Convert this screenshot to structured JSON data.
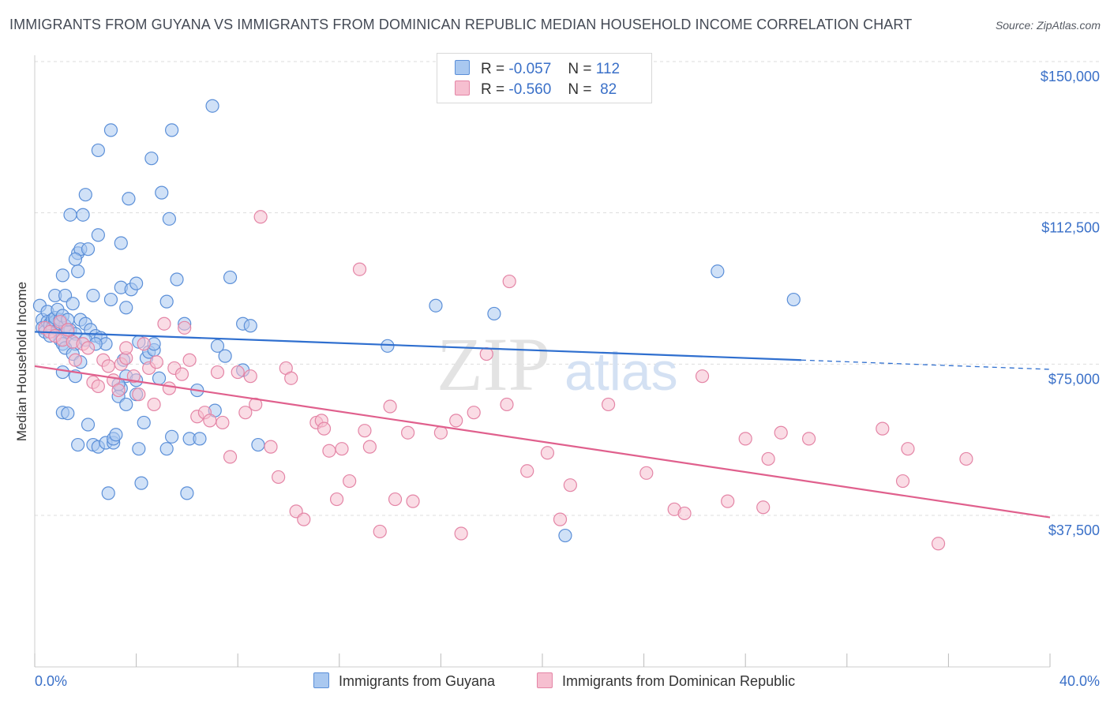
{
  "header": {
    "title": "IMMIGRANTS FROM GUYANA VS IMMIGRANTS FROM DOMINICAN REPUBLIC MEDIAN HOUSEHOLD INCOME CORRELATION CHART",
    "source": "Source: ZipAtlas.com"
  },
  "legend": {
    "rows": [
      {
        "r_label": "R =",
        "r_value": "-0.057",
        "n_label": "N =",
        "n_value": "112"
      },
      {
        "r_label": "R =",
        "r_value": "-0.560",
        "n_label": "N =",
        "n_value": "82"
      }
    ]
  },
  "watermark": {
    "zip": "ZIP",
    "atlas": "atlas"
  },
  "colors": {
    "blue_fill": "#a9c8f0",
    "blue_stroke": "#5b8fd8",
    "blue_line": "#2f6fcf",
    "pink_fill": "#f6bfd0",
    "pink_stroke": "#e485a6",
    "pink_line": "#e0608d",
    "grid": "#dddddd",
    "tick_text": "#3a70c8"
  },
  "chart_data": {
    "type": "scatter",
    "title": "IMMIGRANTS FROM GUYANA VS IMMIGRANTS FROM DOMINICAN REPUBLIC MEDIAN HOUSEHOLD INCOME CORRELATION CHART",
    "xlabel": "",
    "ylabel": "Median Household Income",
    "xlim": [
      0,
      40
    ],
    "ylim": [
      0,
      155000
    ],
    "x_edge_labels": [
      "0.0%",
      "40.0%"
    ],
    "y_ticks": [
      37500,
      75000,
      112500,
      150000
    ],
    "y_tick_labels": [
      "$37,500",
      "$75,000",
      "$112,500",
      "$150,000"
    ],
    "grid": true,
    "legend_position": "top-center",
    "series": [
      {
        "name": "Immigrants from Guyana",
        "color": "blue",
        "R": -0.057,
        "N": 112,
        "trend": {
          "x0": 0,
          "y0": 83000,
          "x1": 30.2,
          "y1": 76000,
          "dashed_to_x": 40,
          "dashed_to_y": 73700
        },
        "points": [
          [
            0.2,
            89500
          ],
          [
            0.3,
            86000
          ],
          [
            0.3,
            84000
          ],
          [
            0.4,
            83000
          ],
          [
            0.5,
            88000
          ],
          [
            0.5,
            85500
          ],
          [
            0.6,
            85000
          ],
          [
            0.6,
            84500
          ],
          [
            0.7,
            86000
          ],
          [
            0.7,
            84000
          ],
          [
            0.8,
            85500
          ],
          [
            0.9,
            83500
          ],
          [
            1.0,
            81000
          ],
          [
            1.1,
            80000
          ],
          [
            0.6,
            82000
          ],
          [
            0.8,
            86500
          ],
          [
            1.0,
            85000
          ],
          [
            1.2,
            84500
          ],
          [
            1.4,
            83500
          ],
          [
            1.6,
            82500
          ],
          [
            0.8,
            92000
          ],
          [
            1.0,
            86000
          ],
          [
            1.3,
            83000
          ],
          [
            1.6,
            80000
          ],
          [
            0.9,
            88500
          ],
          [
            1.1,
            87000
          ],
          [
            1.3,
            86000
          ],
          [
            1.2,
            92000
          ],
          [
            1.5,
            90000
          ],
          [
            1.7,
            98000
          ],
          [
            1.8,
            86000
          ],
          [
            2.0,
            85000
          ],
          [
            2.2,
            83500
          ],
          [
            2.4,
            82000
          ],
          [
            2.6,
            81500
          ],
          [
            2.8,
            80000
          ],
          [
            1.2,
            79000
          ],
          [
            1.5,
            77500
          ],
          [
            1.8,
            75500
          ],
          [
            1.1,
            73000
          ],
          [
            2.0,
            81000
          ],
          [
            2.4,
            80000
          ],
          [
            1.6,
            72000
          ],
          [
            1.1,
            63000
          ],
          [
            1.3,
            62800
          ],
          [
            1.7,
            55000
          ],
          [
            2.1,
            60000
          ],
          [
            2.3,
            55000
          ],
          [
            2.5,
            54500
          ],
          [
            2.8,
            55500
          ],
          [
            2.9,
            43000
          ],
          [
            3.1,
            55500
          ],
          [
            3.1,
            56500
          ],
          [
            3.2,
            57500
          ],
          [
            3.4,
            69000
          ],
          [
            3.3,
            67000
          ],
          [
            3.6,
            65000
          ],
          [
            3.6,
            72000
          ],
          [
            3.5,
            76000
          ],
          [
            3.3,
            70000
          ],
          [
            4.0,
            71000
          ],
          [
            4.0,
            67500
          ],
          [
            4.1,
            54000
          ],
          [
            4.2,
            45500
          ],
          [
            4.3,
            60500
          ],
          [
            4.4,
            76500
          ],
          [
            4.5,
            78000
          ],
          [
            4.7,
            78500
          ],
          [
            4.7,
            80000
          ],
          [
            4.9,
            71500
          ],
          [
            5.2,
            54000
          ],
          [
            5.2,
            90500
          ],
          [
            5.4,
            57000
          ],
          [
            5.6,
            96000
          ],
          [
            5.9,
            85000
          ],
          [
            6.0,
            43000
          ],
          [
            6.1,
            56500
          ],
          [
            6.5,
            56500
          ],
          [
            6.4,
            68500
          ],
          [
            7.1,
            63500
          ],
          [
            7.2,
            79500
          ],
          [
            7.5,
            77000
          ],
          [
            7.7,
            96500
          ],
          [
            8.2,
            73500
          ],
          [
            8.2,
            85000
          ],
          [
            8.5,
            84500
          ],
          [
            8.8,
            55000
          ],
          [
            3.0,
            133000
          ],
          [
            5.4,
            133000
          ],
          [
            2.5,
            128000
          ],
          [
            4.6,
            126000
          ],
          [
            7.0,
            139000
          ],
          [
            1.4,
            112000
          ],
          [
            1.9,
            112000
          ],
          [
            2.0,
            117000
          ],
          [
            3.7,
            116000
          ],
          [
            5.0,
            117500
          ],
          [
            5.3,
            111000
          ],
          [
            1.7,
            102500
          ],
          [
            1.8,
            103500
          ],
          [
            2.1,
            103500
          ],
          [
            2.5,
            107000
          ],
          [
            3.4,
            105000
          ],
          [
            1.1,
            97000
          ],
          [
            1.6,
            101000
          ],
          [
            2.3,
            92000
          ],
          [
            3.0,
            91000
          ],
          [
            3.4,
            94000
          ],
          [
            3.6,
            89000
          ],
          [
            3.8,
            93500
          ],
          [
            4.0,
            95000
          ],
          [
            4.1,
            80500
          ],
          [
            13.9,
            79500
          ],
          [
            15.8,
            89500
          ],
          [
            18.1,
            87500
          ],
          [
            26.9,
            98000
          ],
          [
            29.9,
            91000
          ],
          [
            20.9,
            32500
          ]
        ]
      },
      {
        "name": "Immigrants from Dominican Republic",
        "color": "pink",
        "R": -0.56,
        "N": 82,
        "trend": {
          "x0": 0,
          "y0": 74500,
          "x1": 40,
          "y1": 37000
        },
        "points": [
          [
            0.4,
            84000
          ],
          [
            0.6,
            83000
          ],
          [
            0.8,
            82000
          ],
          [
            1.0,
            85500
          ],
          [
            1.1,
            81000
          ],
          [
            1.3,
            83500
          ],
          [
            1.5,
            80500
          ],
          [
            1.6,
            76000
          ],
          [
            1.9,
            80000
          ],
          [
            2.1,
            79000
          ],
          [
            2.3,
            70500
          ],
          [
            2.5,
            69500
          ],
          [
            2.7,
            76000
          ],
          [
            2.9,
            74500
          ],
          [
            3.1,
            71000
          ],
          [
            3.3,
            68500
          ],
          [
            3.4,
            75000
          ],
          [
            3.6,
            76500
          ],
          [
            3.6,
            79000
          ],
          [
            3.9,
            72000
          ],
          [
            4.1,
            67500
          ],
          [
            4.3,
            80000
          ],
          [
            4.5,
            74000
          ],
          [
            4.7,
            65000
          ],
          [
            4.8,
            75500
          ],
          [
            5.1,
            85000
          ],
          [
            5.3,
            69000
          ],
          [
            5.5,
            74000
          ],
          [
            5.8,
            72500
          ],
          [
            5.9,
            84000
          ],
          [
            6.1,
            76000
          ],
          [
            6.4,
            62000
          ],
          [
            6.7,
            63000
          ],
          [
            6.9,
            61000
          ],
          [
            7.2,
            73000
          ],
          [
            7.4,
            60500
          ],
          [
            7.7,
            52000
          ],
          [
            8.0,
            73000
          ],
          [
            8.3,
            63000
          ],
          [
            8.5,
            72000
          ],
          [
            8.7,
            65000
          ],
          [
            8.9,
            111500
          ],
          [
            9.3,
            54500
          ],
          [
            9.6,
            47000
          ],
          [
            9.9,
            74000
          ],
          [
            10.1,
            71500
          ],
          [
            10.3,
            38500
          ],
          [
            10.6,
            36500
          ],
          [
            11.1,
            60500
          ],
          [
            11.3,
            61000
          ],
          [
            11.4,
            59000
          ],
          [
            11.6,
            53500
          ],
          [
            11.9,
            41500
          ],
          [
            12.1,
            54000
          ],
          [
            12.4,
            46000
          ],
          [
            12.8,
            98500
          ],
          [
            13.0,
            58500
          ],
          [
            13.2,
            54500
          ],
          [
            13.6,
            33500
          ],
          [
            14.0,
            64500
          ],
          [
            14.2,
            41500
          ],
          [
            14.7,
            58000
          ],
          [
            14.9,
            41000
          ],
          [
            16.0,
            58000
          ],
          [
            16.6,
            61000
          ],
          [
            16.8,
            33000
          ],
          [
            17.3,
            63000
          ],
          [
            17.8,
            77500
          ],
          [
            18.6,
            65000
          ],
          [
            18.7,
            95500
          ],
          [
            19.4,
            48500
          ],
          [
            20.2,
            53000
          ],
          [
            20.7,
            36500
          ],
          [
            21.1,
            45000
          ],
          [
            22.6,
            65000
          ],
          [
            24.1,
            48000
          ],
          [
            25.2,
            39000
          ],
          [
            25.6,
            38000
          ],
          [
            26.3,
            72000
          ],
          [
            27.3,
            41000
          ],
          [
            28.0,
            56500
          ],
          [
            28.7,
            39500
          ],
          [
            28.9,
            51500
          ],
          [
            29.4,
            58000
          ],
          [
            30.5,
            56500
          ],
          [
            33.4,
            59000
          ],
          [
            34.2,
            46000
          ],
          [
            34.4,
            54000
          ],
          [
            35.6,
            30500
          ],
          [
            36.7,
            51500
          ]
        ]
      }
    ]
  },
  "bottom_legend": {
    "items": [
      {
        "label": "Immigrants from Guyana"
      },
      {
        "label": "Immigrants from Dominican Republic"
      }
    ]
  }
}
